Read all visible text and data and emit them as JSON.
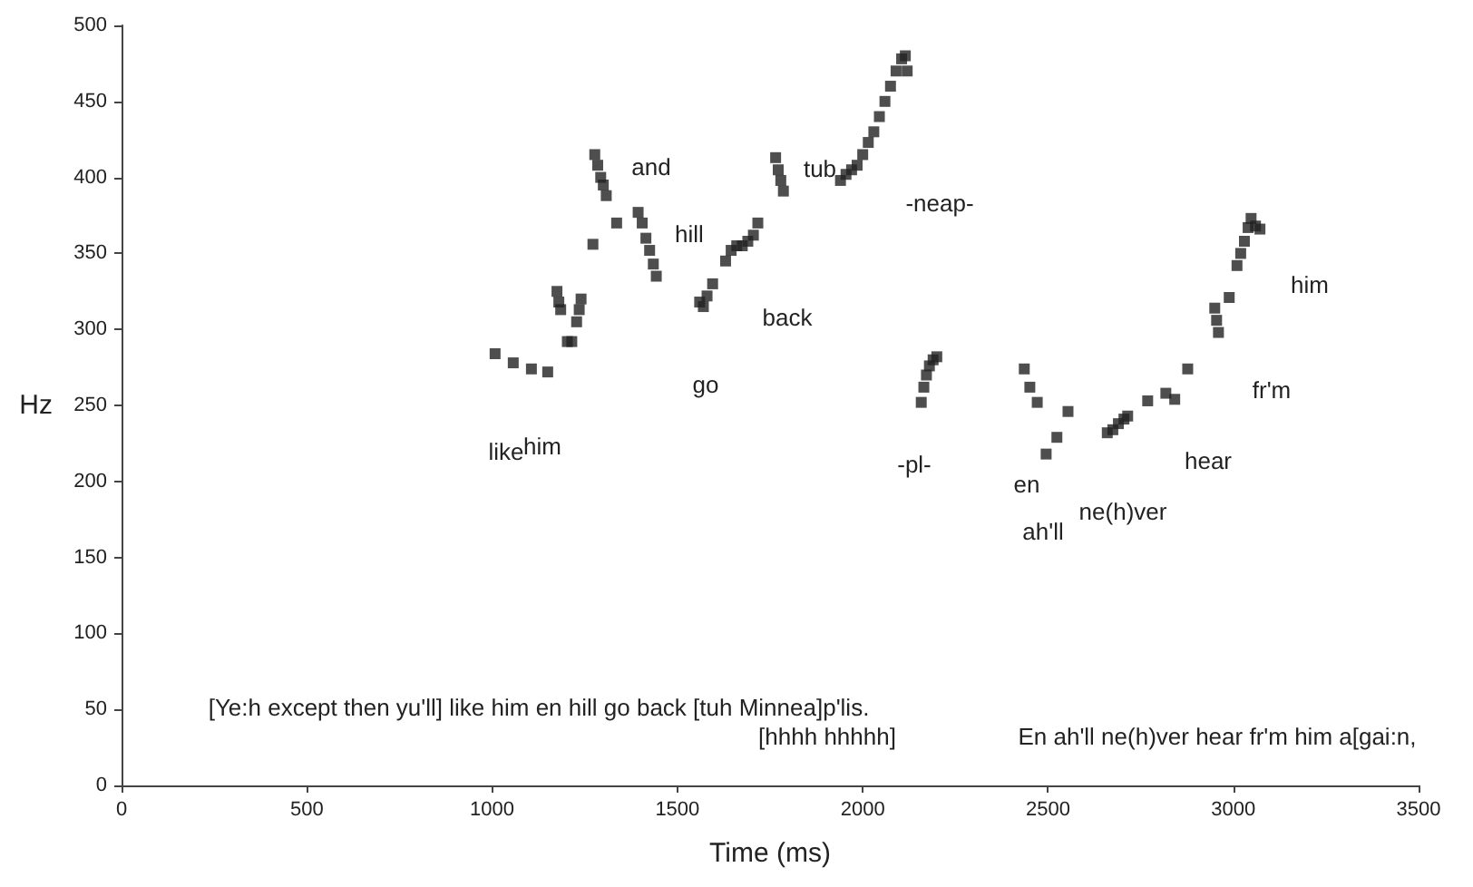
{
  "chart_data": {
    "type": "scatter",
    "xlabel": "Time (ms)",
    "ylabel": "Hz",
    "xlim": [
      0,
      3500
    ],
    "xticks": [
      0,
      500,
      1000,
      1500,
      2000,
      2500,
      3000,
      3500
    ],
    "ylim": [
      0,
      500
    ],
    "yticks": [
      0,
      50,
      100,
      150,
      200,
      250,
      300,
      350,
      400,
      450,
      500
    ],
    "grid": false,
    "marker": "square",
    "series": [
      {
        "color": "#222222",
        "x": [
          1008,
          1057,
          1106,
          1150,
          1175,
          1180,
          1185,
          1203,
          1215,
          1228,
          1235,
          1240,
          1272,
          1277,
          1285,
          1293,
          1300,
          1308,
          1336,
          1394,
          1405,
          1415,
          1425,
          1435,
          1443,
          1560,
          1570,
          1580,
          1595,
          1630,
          1645,
          1660,
          1675,
          1690,
          1705,
          1717,
          1765,
          1772,
          1779,
          1786,
          1940,
          1955,
          1970,
          1985,
          2000,
          2015,
          2030,
          2045,
          2060,
          2075,
          2090,
          2105,
          2115,
          2120,
          2158,
          2165,
          2172,
          2180,
          2190,
          2200,
          2436,
          2451,
          2471,
          2495,
          2524,
          2554,
          2660,
          2675,
          2690,
          2705,
          2715,
          2769,
          2818,
          2842,
          2877,
          2950,
          2955,
          2960,
          2989,
          3010,
          3020,
          3030,
          3040,
          3048,
          3060,
          3072
        ],
        "values": [
          284,
          278,
          274,
          272,
          325,
          318,
          313,
          292,
          292,
          305,
          313,
          320,
          356,
          415,
          408,
          400,
          395,
          388,
          370,
          377,
          370,
          360,
          352,
          343,
          335,
          318,
          315,
          322,
          330,
          345,
          352,
          355,
          355,
          358,
          362,
          370,
          413,
          405,
          398,
          391,
          398,
          402,
          405,
          408,
          415,
          423,
          430,
          440,
          450,
          460,
          470,
          478,
          480,
          470,
          252,
          262,
          270,
          276,
          280,
          282,
          274,
          262,
          252,
          218,
          229,
          246,
          232,
          234,
          238,
          241,
          243,
          253,
          258,
          254,
          274,
          314,
          306,
          298,
          321,
          342,
          350,
          358,
          367,
          373,
          368,
          366
        ]
      }
    ],
    "annotations": [
      "like",
      "him",
      "and",
      "hill",
      "go",
      "back",
      "tub",
      "-neap-",
      "-pl-",
      "en",
      "ah'll",
      "ne(h)ver",
      "hear",
      "fr'm",
      "him",
      "[Ye:h except then yu'll] like him en hill go back [tuh Minnea]p'lis.",
      "[hhhh hhhhh]",
      "En ah'll ne(h)ver hear fr'm him a[gai:n,"
    ]
  }
}
